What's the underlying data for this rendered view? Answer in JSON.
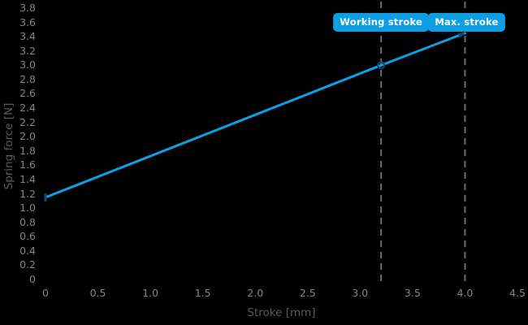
{
  "colors": {
    "background": "#000000",
    "line": "#0d9ee4",
    "marker": "#15476e",
    "guide": "#6b6b6b",
    "badge_bg": "#0d9ee4",
    "badge_text": "#ffffff",
    "tick_text": "#838383",
    "title_text": "#5a5a5a"
  },
  "chart_data": {
    "type": "line",
    "title": "",
    "xlabel": "Stroke [mm]",
    "ylabel": "Spring force [N]",
    "xlim": [
      0,
      4.5
    ],
    "ylim": [
      0,
      3.8
    ],
    "grid": false,
    "legend": "none",
    "x_ticks": [
      "0",
      "0.5",
      "1.0",
      "1.5",
      "2.0",
      "2.5",
      "3.0",
      "3.5",
      "4.0",
      "4.5"
    ],
    "y_ticks": [
      "0",
      "0.2",
      "0.4",
      "0.6",
      "0.8",
      "1.0",
      "1.2",
      "1.4",
      "1.6",
      "1.8",
      "2.0",
      "2.2",
      "2.4",
      "2.6",
      "2.8",
      "3.0",
      "3.2",
      "3.4",
      "3.6",
      "3.8"
    ],
    "series": [
      {
        "name": "Spring force",
        "color": "#0d9ee4",
        "points": [
          {
            "x": 0,
            "y": 1.15,
            "marker": "bar"
          },
          {
            "x": 3.2,
            "y": 3.0,
            "marker": "circle"
          },
          {
            "x": 4.0,
            "y": 3.45,
            "marker": "arrow"
          }
        ]
      }
    ],
    "annotations": [
      {
        "name": "working-stroke",
        "label": "Working stroke",
        "x": 3.2
      },
      {
        "name": "max-stroke",
        "label": "Max. stroke",
        "x": 4.0
      }
    ]
  }
}
